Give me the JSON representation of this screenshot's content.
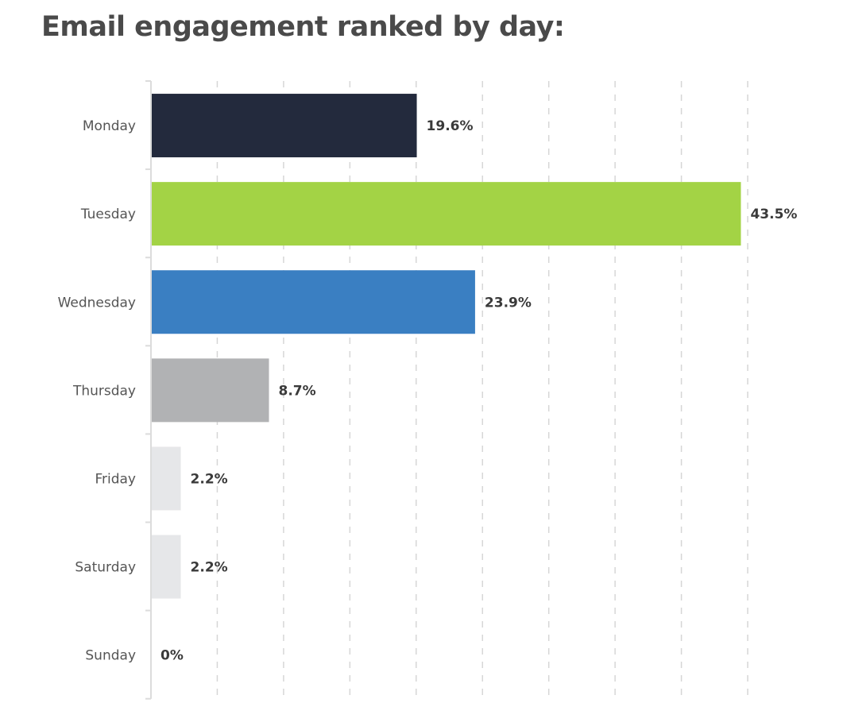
{
  "chart_data": {
    "type": "bar",
    "orientation": "horizontal",
    "title": "Email engagement ranked by day:",
    "categories": [
      "Monday",
      "Tuesday",
      "Wednesday",
      "Thursday",
      "Friday",
      "Saturday",
      "Sunday"
    ],
    "values": [
      19.6,
      43.5,
      23.9,
      8.7,
      2.2,
      2.2,
      0
    ],
    "labels": [
      "19.6%",
      "43.5%",
      "23.9%",
      "8.7%",
      "2.2%",
      "2.2%",
      "0%"
    ],
    "colors": [
      "#232a3d",
      "#a3d345",
      "#3a7fc2",
      "#b1b2b4",
      "#e6e7e9",
      "#e6e7e9",
      "#e6e7e9"
    ],
    "xlim": [
      0,
      44
    ],
    "grid": true,
    "legend": "none"
  }
}
